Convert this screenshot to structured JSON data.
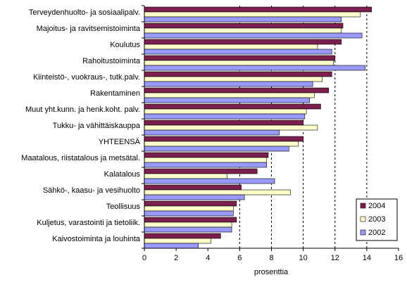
{
  "chart_data": {
    "type": "bar",
    "orientation": "horizontal",
    "categories": [
      "Terveydenhuolto- ja sosiaalipalv.",
      "Majoitus- ja ravitsemistoiminta",
      "Koulutus",
      "Rahoitustoiminta",
      "Kiinteistö-, vuokraus-, tutk.palv.",
      "Rakentaminen",
      "Muut yht.kunn. ja henk.koht. palv.",
      "Tukku- ja vähittäiskauppa",
      "YHTEENSÄ",
      "Maatalous, riistatalous ja metsätal.",
      "Kalatalous",
      "Sähkö-, kaasu- ja vesihuolto",
      "Teollisuus",
      "Kuljetus, varastointi ja tietoliik.",
      "Kaivostoiminta ja louhinta"
    ],
    "series": [
      {
        "name": "2004",
        "color": "#7a1f4e",
        "values": [
          14.3,
          12.5,
          12.4,
          12.0,
          11.8,
          11.6,
          11.1,
          10.0,
          10.0,
          7.8,
          7.1,
          6.1,
          5.8,
          5.8,
          4.8
        ]
      },
      {
        "name": "2003",
        "color": "#ffffcc",
        "values": [
          13.6,
          12.4,
          10.9,
          11.9,
          11.2,
          10.7,
          10.2,
          10.9,
          9.7,
          7.7,
          5.2,
          9.2,
          5.6,
          5.5,
          4.2
        ]
      },
      {
        "name": "2002",
        "color": "#9999ff",
        "values": [
          12.4,
          13.7,
          11.8,
          13.9,
          10.6,
          10.4,
          10.1,
          8.5,
          9.1,
          7.7,
          8.2,
          6.3,
          5.6,
          5.5,
          3.4
        ]
      }
    ],
    "xlabel": "prosenttia",
    "xlim": [
      0,
      16
    ],
    "xticks": [
      0,
      2,
      4,
      6,
      8,
      10,
      12,
      14,
      16
    ],
    "gridlines": [
      6,
      8,
      10,
      12,
      14
    ],
    "legend_position": "bottom-right"
  }
}
